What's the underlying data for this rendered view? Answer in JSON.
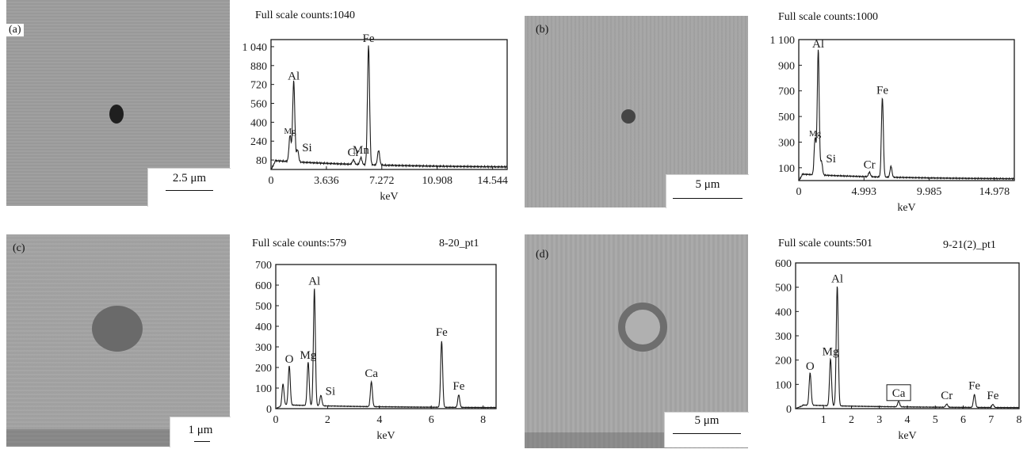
{
  "panels": [
    {
      "label": "(a)",
      "scale_bar": "2.5 μm",
      "header": "Full scale counts:1040",
      "sample": ""
    },
    {
      "label": "(b)",
      "scale_bar": "5 μm",
      "header": "Full scale counts:1000",
      "sample": ""
    },
    {
      "label": "(c)",
      "scale_bar": "1 μm",
      "header": "Full scale counts:579",
      "sample": "8-20_pt1"
    },
    {
      "label": "(d)",
      "scale_bar": "5 μm",
      "header": "Full scale counts:501",
      "sample": "9-21(2)_pt1"
    }
  ],
  "colors": {
    "spectrum": "#1a1a1a",
    "sem_background": "#9a9a9a",
    "inclusion": "#3a3a3a"
  },
  "chart_data": [
    {
      "type": "line",
      "title": "Full scale counts:1040",
      "xlabel": "keV",
      "ylabel": "",
      "xlim": [
        0,
        15.5
      ],
      "ylim": [
        0,
        1100
      ],
      "xticks": [
        0,
        3.636,
        7.272,
        10.908,
        14.544
      ],
      "xtick_labels": [
        "0",
        "3.636",
        "7.272",
        "10.908",
        "14.544"
      ],
      "yticks": [
        80,
        240,
        400,
        560,
        720,
        880,
        1040
      ],
      "ytick_labels": [
        "80",
        "240",
        "400",
        "560",
        "720",
        "880",
        "1 040"
      ],
      "baseline": 60,
      "peaks": [
        {
          "x": 1.25,
          "y": 260,
          "label": "Mg"
        },
        {
          "x": 1.49,
          "y": 720,
          "label": "Al"
        },
        {
          "x": 1.74,
          "y": 140,
          "label": "Si"
        },
        {
          "x": 5.41,
          "y": 75,
          "label": "Cr"
        },
        {
          "x": 5.9,
          "y": 95,
          "label": "Mn"
        },
        {
          "x": 6.4,
          "y": 1040,
          "label": "Fe"
        },
        {
          "x": 7.06,
          "y": 160,
          "label": ""
        }
      ]
    },
    {
      "type": "line",
      "title": "Full scale counts:1000",
      "xlabel": "keV",
      "ylabel": "",
      "xlim": [
        0,
        16.5
      ],
      "ylim": [
        0,
        1100
      ],
      "xticks": [
        0,
        4.993,
        9.985,
        14.978
      ],
      "xtick_labels": [
        "0",
        "4.993",
        "9.985",
        "14.978"
      ],
      "yticks": [
        100,
        300,
        500,
        700,
        900,
        1100
      ],
      "ytick_labels": [
        "100",
        "300",
        "500",
        "700",
        "900",
        "1 100"
      ],
      "baseline": 40,
      "peaks": [
        {
          "x": 1.25,
          "y": 310,
          "label": "Mg"
        },
        {
          "x": 1.49,
          "y": 1000,
          "label": "Al"
        },
        {
          "x": 1.74,
          "y": 130,
          "label": "Si"
        },
        {
          "x": 5.41,
          "y": 60,
          "label": "Cr"
        },
        {
          "x": 6.4,
          "y": 640,
          "label": "Fe"
        },
        {
          "x": 7.06,
          "y": 110,
          "label": ""
        }
      ]
    },
    {
      "type": "line",
      "title": "Full scale counts:579",
      "xlabel": "keV",
      "ylabel": "",
      "xlim": [
        0,
        8.5
      ],
      "ylim": [
        0,
        700
      ],
      "xticks": [
        0,
        2,
        4,
        6,
        8
      ],
      "xtick_labels": [
        "0",
        "2",
        "4",
        "6",
        "8"
      ],
      "yticks": [
        0,
        100,
        200,
        300,
        400,
        500,
        600,
        700
      ],
      "ytick_labels": [
        "0",
        "100",
        "200",
        "300",
        "400",
        "500",
        "600",
        "700"
      ],
      "baseline": 15,
      "peaks": [
        {
          "x": 0.28,
          "y": 110,
          "label": ""
        },
        {
          "x": 0.52,
          "y": 200,
          "label": "O"
        },
        {
          "x": 1.25,
          "y": 220,
          "label": "Mg"
        },
        {
          "x": 1.49,
          "y": 579,
          "label": "Al"
        },
        {
          "x": 1.74,
          "y": 60,
          "label": "Si"
        },
        {
          "x": 3.69,
          "y": 130,
          "label": "Ca"
        },
        {
          "x": 6.4,
          "y": 330,
          "label": "Fe"
        },
        {
          "x": 7.06,
          "y": 70,
          "label": "Fe"
        }
      ]
    },
    {
      "type": "line",
      "title": "Full scale counts:501",
      "xlabel": "keV",
      "ylabel": "",
      "xlim": [
        0,
        8
      ],
      "ylim": [
        0,
        600
      ],
      "xticks": [
        1,
        2,
        3,
        4,
        5,
        6,
        7,
        8
      ],
      "xtick_labels": [
        "1",
        "2",
        "3",
        "4",
        "5",
        "6",
        "7",
        "8"
      ],
      "yticks": [
        0,
        100,
        200,
        300,
        400,
        500,
        600
      ],
      "ytick_labels": [
        "0",
        "100",
        "200",
        "300",
        "400",
        "500",
        "600"
      ],
      "baseline": 12,
      "peaks": [
        {
          "x": 0.52,
          "y": 140,
          "label": "O"
        },
        {
          "x": 1.25,
          "y": 200,
          "label": "Mg"
        },
        {
          "x": 1.49,
          "y": 501,
          "label": "Al"
        },
        {
          "x": 3.69,
          "y": 30,
          "label": "Ca",
          "boxed": true
        },
        {
          "x": 5.41,
          "y": 20,
          "label": "Cr"
        },
        {
          "x": 6.4,
          "y": 60,
          "label": "Fe"
        },
        {
          "x": 7.06,
          "y": 20,
          "label": "Fe"
        }
      ]
    }
  ]
}
